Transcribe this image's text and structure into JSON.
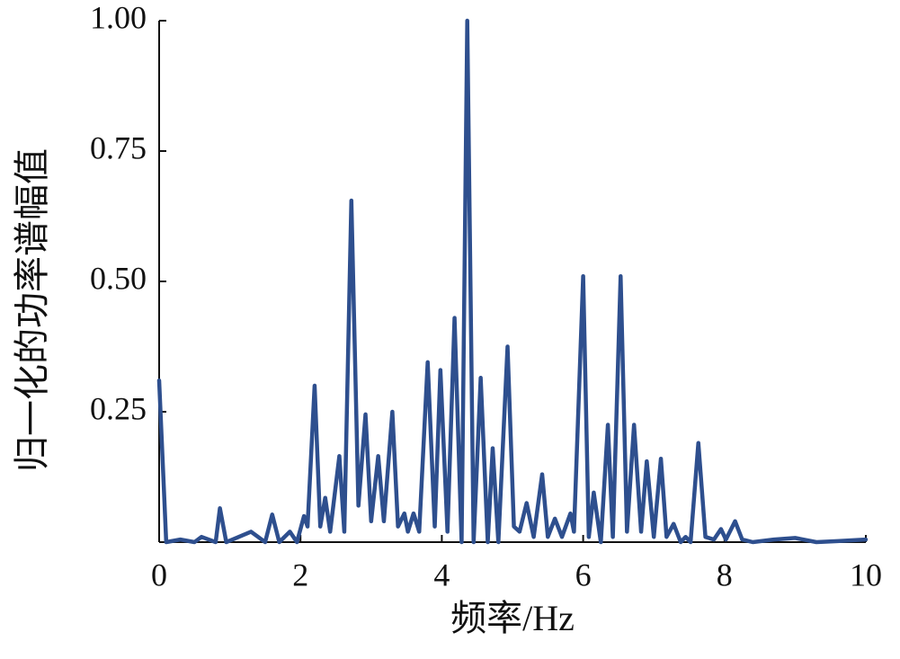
{
  "chart_data": {
    "type": "line",
    "xlabel": "频率/Hz",
    "ylabel": "归一化的功率谱幅值",
    "xlim": [
      0,
      10
    ],
    "ylim": [
      0,
      1
    ],
    "xticks": [
      0,
      2,
      4,
      6,
      8,
      10
    ],
    "yticks": [
      0.25,
      {
        "value": 0.5,
        "label": "0.50"
      },
      0.75,
      {
        "value": 1,
        "label": "1.00"
      }
    ],
    "series": [
      {
        "color": "#2e4f8e",
        "x": [
          0,
          0.1,
          0.3,
          0.5,
          0.6,
          0.8,
          0.86,
          0.95,
          1.3,
          1.4,
          1.5,
          1.6,
          1.7,
          1.85,
          1.95,
          2.05,
          2.1,
          2.2,
          2.28,
          2.35,
          2.42,
          2.55,
          2.62,
          2.72,
          2.82,
          2.92,
          3.0,
          3.1,
          3.18,
          3.3,
          3.38,
          3.47,
          3.52,
          3.6,
          3.68,
          3.8,
          3.9,
          3.98,
          4.08,
          4.18,
          4.28,
          4.36,
          4.45,
          4.55,
          4.65,
          4.72,
          4.8,
          4.93,
          5.02,
          5.1,
          5.2,
          5.3,
          5.42,
          5.5,
          5.6,
          5.7,
          5.82,
          5.87,
          6.0,
          6.08,
          6.15,
          6.25,
          6.35,
          6.42,
          6.53,
          6.62,
          6.72,
          6.82,
          6.9,
          7.0,
          7.1,
          7.18,
          7.28,
          7.38,
          7.45,
          7.52,
          7.63,
          7.73,
          7.85,
          7.95,
          8.02,
          8.15,
          8.25,
          8.4,
          8.7,
          9.0,
          9.3,
          9.6,
          10
        ],
        "values": [
          0.31,
          0,
          0.005,
          0,
          0.01,
          0,
          0.065,
          0,
          0.02,
          0.01,
          0,
          0.053,
          0,
          0.02,
          0,
          0.05,
          0.03,
          0.3,
          0.03,
          0.085,
          0.02,
          0.165,
          0.02,
          0.655,
          0.07,
          0.245,
          0.04,
          0.165,
          0.04,
          0.25,
          0.03,
          0.055,
          0.02,
          0.055,
          0.02,
          0.345,
          0.03,
          0.33,
          0.02,
          0.43,
          0,
          1.0,
          0,
          0.315,
          0,
          0.18,
          0,
          0.375,
          0.03,
          0.02,
          0.075,
          0.01,
          0.13,
          0.01,
          0.045,
          0.01,
          0.055,
          0.02,
          0.51,
          0.01,
          0.095,
          0,
          0.225,
          0.01,
          0.51,
          0.02,
          0.225,
          0.02,
          0.155,
          0.01,
          0.16,
          0.01,
          0.035,
          0,
          0.01,
          0,
          0.19,
          0.01,
          0.005,
          0.025,
          0.005,
          0.04,
          0.005,
          0,
          0.005,
          0.008,
          0,
          0.002,
          0.005
        ]
      }
    ]
  }
}
